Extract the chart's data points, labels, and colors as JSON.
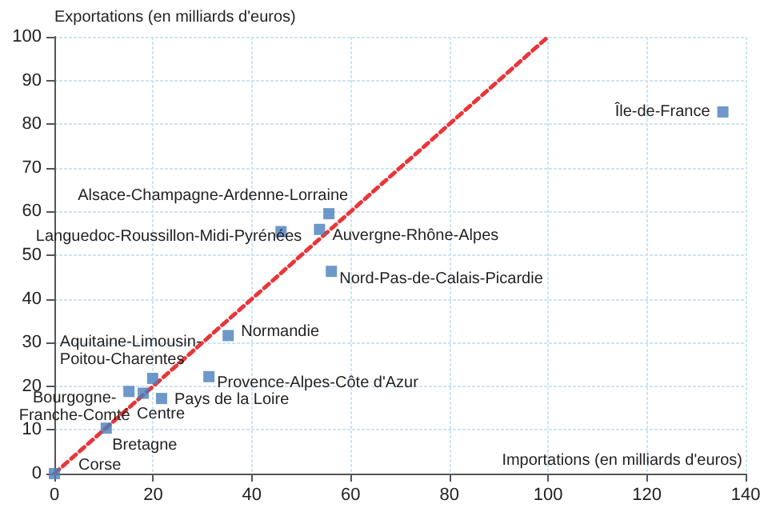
{
  "chart_data": {
    "type": "scatter",
    "xlabel": "Importations (en milliards d'euros)",
    "ylabel": "Exportations (en milliards d'euros)",
    "xlim": [
      0,
      140
    ],
    "xticks": [
      0,
      20,
      40,
      60,
      80,
      100,
      120,
      140
    ],
    "ylim": [
      0,
      100
    ],
    "yticks": [
      0,
      10,
      20,
      30,
      40,
      50,
      60,
      70,
      80,
      90,
      100
    ],
    "grid": true,
    "series": [
      {
        "color": "#4a7ebb",
        "marker": "square",
        "x": [
          135.4,
          55.6,
          45.9,
          53.7,
          56.1,
          35.2,
          31.3,
          19.9,
          15.1,
          18.0,
          21.7,
          10.5,
          0
        ],
        "values": [
          82.8,
          59.5,
          55.4,
          55.9,
          46.3,
          31.6,
          22.2,
          21.8,
          18.8,
          18.4,
          17.2,
          10.4,
          0
        ]
      },
      {
        "type": "line",
        "color": "#e8363a",
        "line_style": "dashed",
        "marker": "none",
        "x": [
          0,
          100
        ],
        "values": [
          0,
          100
        ]
      }
    ],
    "annotations": [
      {
        "text": "Île-de-France",
        "x": 135.4,
        "y": 82.8
      },
      {
        "text": "Alsace-Champagne-Ardenne-Lorraine",
        "x": 55.6,
        "y": 59.5
      },
      {
        "text": "Languedoc-Roussillon-Midi-Pyrénées",
        "x": 45.9,
        "y": 55.4
      },
      {
        "text": "Auvergne-Rhône-Alpes",
        "x": 53.7,
        "y": 55.9
      },
      {
        "text": "Nord-Pas-de-Calais-Picardie",
        "x": 56.1,
        "y": 46.3
      },
      {
        "text": "Normandie",
        "x": 35.2,
        "y": 31.6
      },
      {
        "text": "Provence-Alpes-Côte d'Azur",
        "x": 31.3,
        "y": 22.2
      },
      {
        "text": "Aquitaine-Limousin-\nPoitou-Charentes",
        "x": 19.9,
        "y": 21.8
      },
      {
        "text": "Bourgogne-\nFranche-Comté",
        "x": 15.1,
        "y": 18.8
      },
      {
        "text": "Centre",
        "x": 18.0,
        "y": 18.4
      },
      {
        "text": "Pays de la Loire",
        "x": 21.7,
        "y": 17.2
      },
      {
        "text": "Bretagne",
        "x": 10.5,
        "y": 10.4
      },
      {
        "text": "Corse",
        "x": 0,
        "y": 0
      }
    ]
  }
}
